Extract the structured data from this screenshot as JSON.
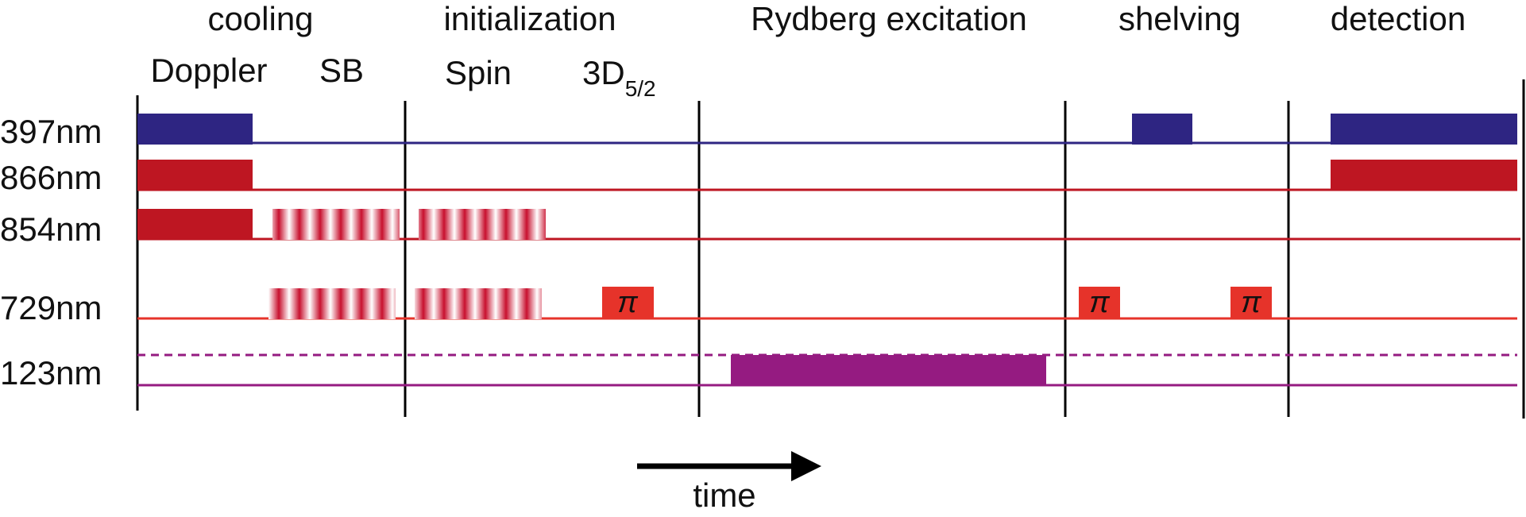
{
  "phases": [
    "cooling",
    "initialization",
    "Rydberg excitation",
    "shelving",
    "detection"
  ],
  "subphases": {
    "doppler": "Doppler",
    "sb": "SB",
    "spin": "Spin",
    "d52_main": "3D",
    "d52_sub": "5/2"
  },
  "lasers": [
    "397nm",
    "866nm",
    "854nm",
    "729nm",
    "123nm"
  ],
  "pi_label": "π",
  "time_label": "time",
  "colors": {
    "l397": "#2e2582",
    "l866": "#be1622",
    "l854": "#be1622",
    "l729": "#e6332a",
    "l123": "#951b81",
    "divider": "#000000"
  }
}
